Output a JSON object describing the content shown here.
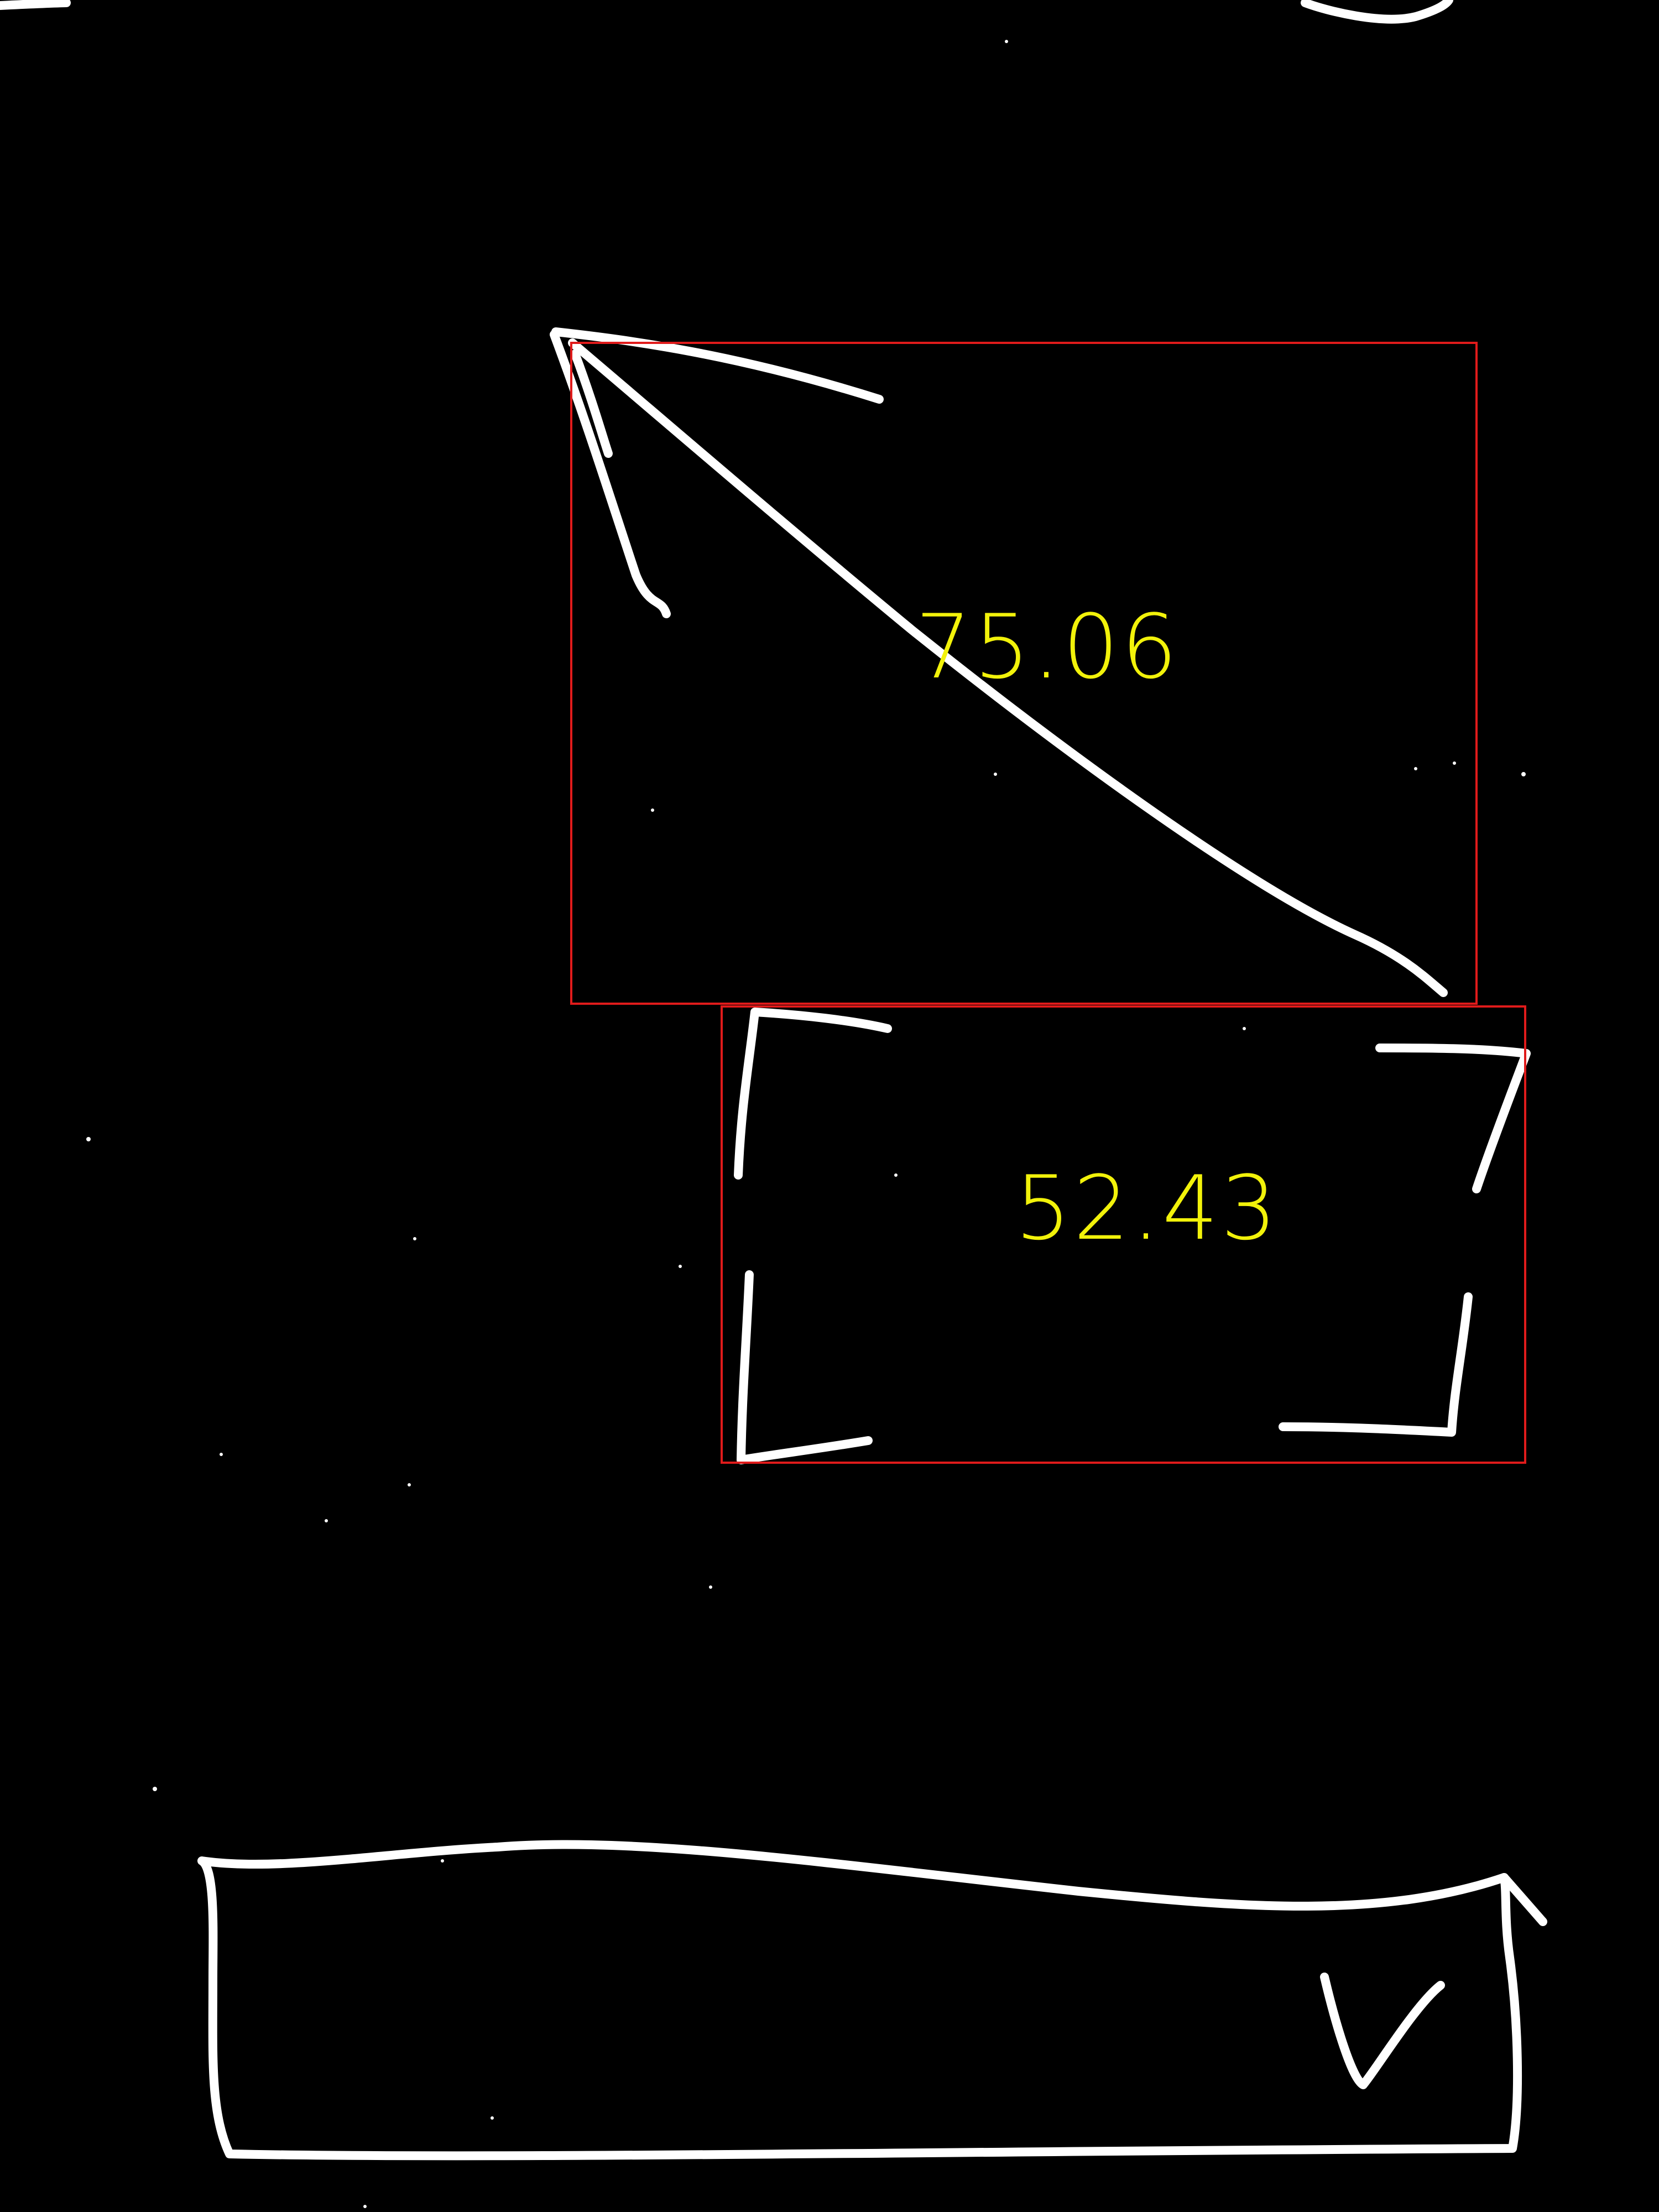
{
  "colors": {
    "background": "#000000",
    "sketch_stroke": "#ffffff",
    "bbox_stroke": "#e01b1b",
    "score_text": "#f2f20a"
  },
  "detections": [
    {
      "element": "arrow-sketch",
      "score": "75.06"
    },
    {
      "element": "image-placeholder-sketch",
      "score": "52.43"
    }
  ]
}
